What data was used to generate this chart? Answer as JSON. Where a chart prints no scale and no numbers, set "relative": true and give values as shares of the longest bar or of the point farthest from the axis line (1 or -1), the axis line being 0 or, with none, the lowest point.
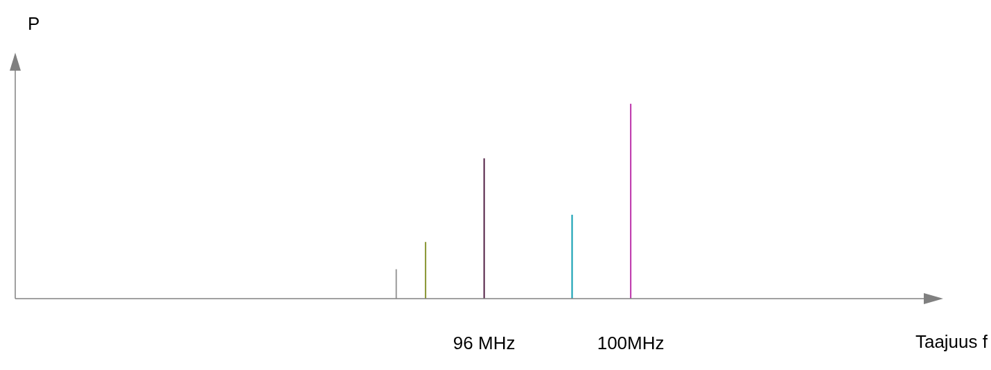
{
  "chart_data": {
    "type": "bar",
    "relative": true,
    "xlabel": "Taajuus f",
    "ylabel": "P",
    "x": [
      93.6,
      94.4,
      96,
      98.4,
      100
    ],
    "values": [
      0.15,
      0.29,
      0.72,
      0.43,
      1
    ],
    "colors": [
      "#a0a0a0",
      "#8e9a3c",
      "#5c2d4f",
      "#1aa3b5",
      "#c040b0"
    ],
    "xlim": [
      83.2,
      108
    ],
    "xticks": [
      {
        "value": 96,
        "label": "96 MHz"
      },
      {
        "value": 100,
        "label": "100MHz"
      }
    ],
    "grid": false,
    "legend": false
  }
}
